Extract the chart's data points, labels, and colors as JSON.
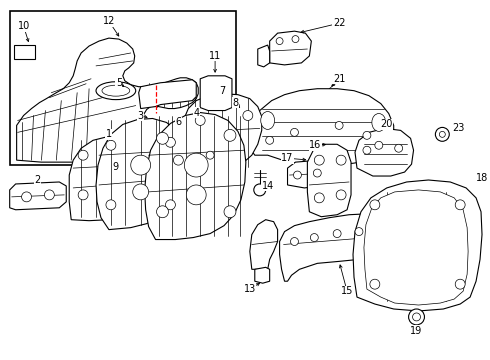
{
  "bg_color": "#ffffff",
  "figsize": [
    4.9,
    3.6
  ],
  "dpi": 100
}
